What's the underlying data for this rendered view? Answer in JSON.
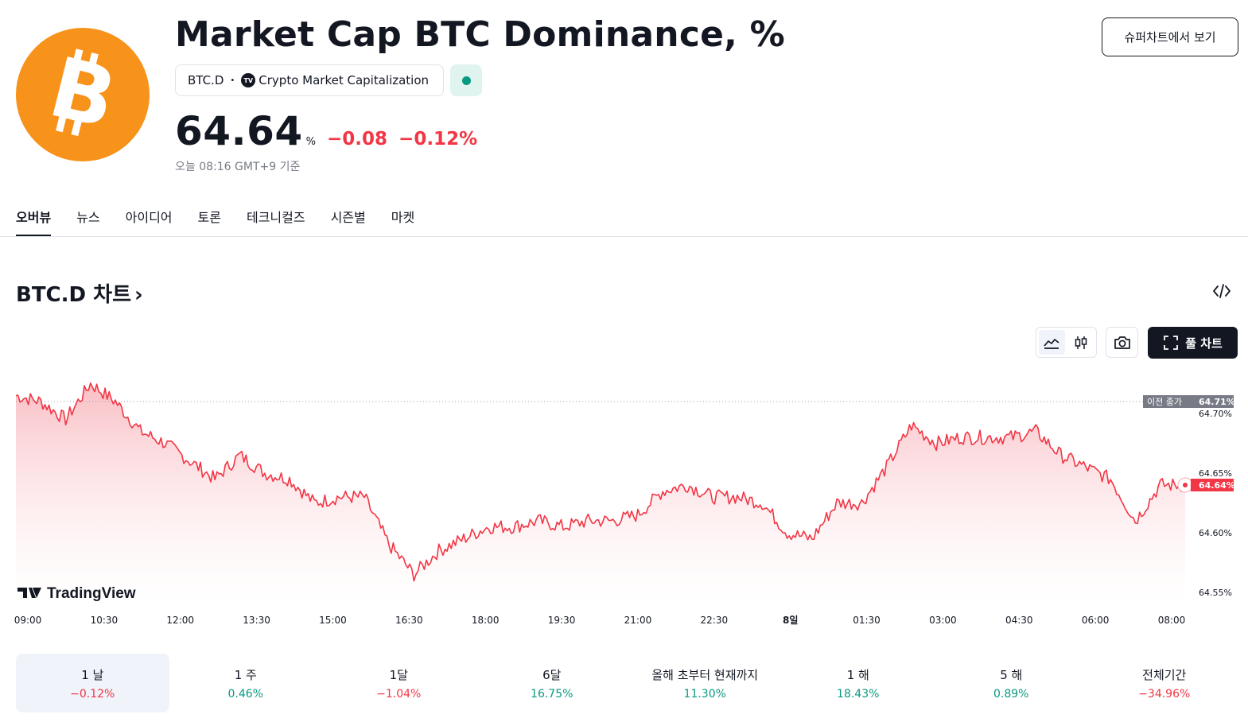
{
  "header": {
    "title": "Market Cap BTC Dominance, %",
    "symbol": "BTC.D",
    "source_badge": "TV",
    "source": "Crypto Market Capitalization",
    "price": "64.64",
    "price_unit": "%",
    "change_abs": "−0.08",
    "change_pct": "−0.12%",
    "as_of": "오늘 08:16 GMT+9 기준",
    "supercharts_button": "슈퍼차트에서 보기",
    "logo_icon": "bitcoin-logo",
    "market_status": "open"
  },
  "tabs": [
    {
      "label": "오버뷰",
      "active": true
    },
    {
      "label": "뉴스",
      "active": false
    },
    {
      "label": "아이디어",
      "active": false
    },
    {
      "label": "토론",
      "active": false
    },
    {
      "label": "테크니컬즈",
      "active": false
    },
    {
      "label": "시즌별",
      "active": false
    },
    {
      "label": "마켓",
      "active": false
    }
  ],
  "chart_section": {
    "heading": "BTC.D 차트",
    "heading_arrow": "›",
    "full_chart_button": "풀 차트",
    "tools": [
      "area-chart-icon",
      "candles-icon",
      "camera-icon",
      "embed-code-icon"
    ]
  },
  "chart_data": {
    "type": "area",
    "colors": {
      "line": "#f23645",
      "fill_top": "#f7a9b1",
      "fill_bottom": "#ffffff",
      "prev_close_label_bg": "#787b86",
      "last_label_bg": "#f23645"
    },
    "watermark": "TradingView",
    "x_ticks": [
      "09:00",
      "10:30",
      "12:00",
      "13:30",
      "15:00",
      "16:30",
      "18:00",
      "19:30",
      "21:00",
      "22:30",
      "8일",
      "01:30",
      "03:00",
      "04:30",
      "06:00",
      "08:00"
    ],
    "y_ticks": [
      "64.70%",
      "64.65%",
      "64.60%",
      "64.55%"
    ],
    "y_tick_values": [
      64.7,
      64.65,
      64.6,
      64.55
    ],
    "ylim": [
      64.54,
      64.74
    ],
    "prev_close": {
      "label": "이전 종가",
      "value_label": "64.71%",
      "value": 64.71
    },
    "last": {
      "value_label": "64.64%",
      "value": 64.64
    },
    "x": [
      "09:00",
      "09:30",
      "10:00",
      "10:30",
      "11:00",
      "11:30",
      "12:00",
      "12:30",
      "13:00",
      "13:30",
      "14:00",
      "14:30",
      "15:00",
      "15:30",
      "16:00",
      "16:30",
      "17:00",
      "17:30",
      "18:00",
      "18:30",
      "19:00",
      "19:30",
      "20:00",
      "20:30",
      "21:00",
      "21:30",
      "22:00",
      "22:30",
      "23:00",
      "23:30",
      "00:00",
      "00:30",
      "01:00",
      "01:30",
      "02:00",
      "02:30",
      "03:00",
      "03:30",
      "04:00",
      "04:30",
      "05:00",
      "05:30",
      "06:00",
      "06:30",
      "07:00",
      "07:30",
      "08:00",
      "08:16"
    ],
    "values": [
      64.715,
      64.71,
      64.695,
      64.725,
      64.71,
      64.685,
      64.675,
      64.66,
      64.645,
      64.665,
      64.65,
      64.645,
      64.625,
      64.63,
      64.63,
      64.59,
      64.565,
      64.585,
      64.595,
      64.605,
      64.605,
      64.61,
      64.605,
      64.61,
      64.61,
      64.615,
      64.635,
      64.64,
      64.63,
      64.63,
      64.625,
      64.6,
      64.595,
      64.625,
      64.625,
      64.655,
      64.69,
      64.675,
      64.68,
      64.68,
      64.68,
      64.685,
      64.665,
      64.655,
      64.645,
      64.61,
      64.64,
      64.64
    ]
  },
  "periods": [
    {
      "label": "1 날",
      "value": "−0.12%",
      "sign": "neg",
      "active": true
    },
    {
      "label": "1 주",
      "value": "0.46%",
      "sign": "pos",
      "active": false
    },
    {
      "label": "1달",
      "value": "−1.04%",
      "sign": "neg",
      "active": false
    },
    {
      "label": "6달",
      "value": "16.75%",
      "sign": "pos",
      "active": false
    },
    {
      "label": "올해 초부터 현재까지",
      "value": "11.30%",
      "sign": "pos",
      "active": false
    },
    {
      "label": "1 해",
      "value": "18.43%",
      "sign": "pos",
      "active": false
    },
    {
      "label": "5 해",
      "value": "0.89%",
      "sign": "pos",
      "active": false
    },
    {
      "label": "전체기간",
      "value": "−34.96%",
      "sign": "neg",
      "active": false
    }
  ]
}
